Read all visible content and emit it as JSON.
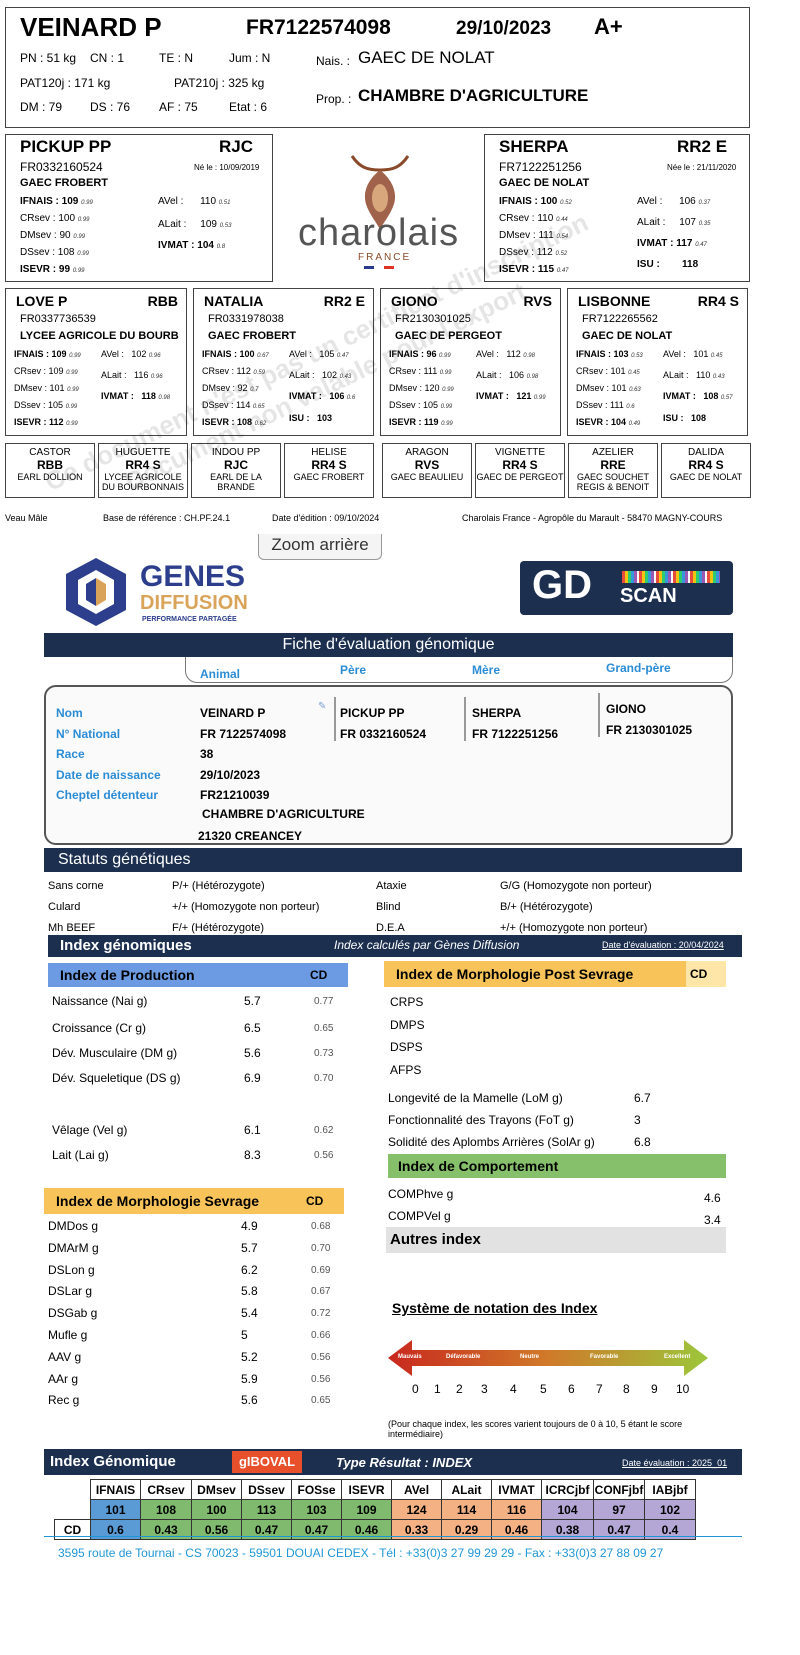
{
  "header": {
    "name": "VEINARD P",
    "national_id": "FR7122574098",
    "birth_date": "29/10/2023",
    "grade": "A+",
    "pn": "PN : 51 kg",
    "cn": "CN : 1",
    "te": "TE : N",
    "jum": "Jum : N",
    "pat120": "PAT120j : 171 kg",
    "pat210": "PAT210j : 325 kg",
    "dm": "DM : 79",
    "ds": "DS : 76",
    "af": "AF : 75",
    "etat": "Etat : 6",
    "nais_label": "Nais. :",
    "nais_value": "GAEC DE NOLAT",
    "prop_label": "Prop. :",
    "prop_value": "CHAMBRE D'AGRICULTURE"
  },
  "sire": {
    "name": "PICKUP PP",
    "code": "RJC",
    "id": "FR0332160524",
    "born": "Né le : 10/09/2019",
    "breeder": "GAEC FROBERT",
    "l1": "IFNAIS :",
    "v1": "109",
    "c1": "0.99",
    "l2": "CRsev :",
    "v2": "100",
    "c2": "0.99",
    "l3": "DMsev :",
    "v3": "90",
    "c3": "0.99",
    "l4": "DSsev :",
    "v4": "108",
    "c4": "0.99",
    "l5": "ISEVR :",
    "v5": "99",
    "c5": "0.99",
    "r1": "AVel :",
    "rv1": "110",
    "rc1": "0.51",
    "r2": "ALait :",
    "rv2": "109",
    "rc2": "0.53",
    "r3": "IVMAT :",
    "rv3": "104",
    "rc3": "0.8"
  },
  "dam": {
    "name": "SHERPA",
    "code": "RR2 E",
    "id": "FR7122251256",
    "born": "Née le : 21/11/2020",
    "breeder": "GAEC DE NOLAT",
    "l1": "IFNAIS :",
    "v1": "100",
    "c1": "0.52",
    "l2": "CRsev :",
    "v2": "110",
    "c2": "0.44",
    "l3": "DMsev :",
    "v3": "111",
    "c3": "0.54",
    "l4": "DSsev :",
    "v4": "112",
    "c4": "0.52",
    "l5": "ISEVR :",
    "v5": "115",
    "c5": "0.47",
    "r1": "AVel :",
    "rv1": "106",
    "rc1": "0.37",
    "r2": "ALait :",
    "rv2": "107",
    "rc2": "0.35",
    "r3": "IVMAT :",
    "rv3": "117",
    "rc3": "0.47",
    "r4": "ISU :",
    "rv4": "118"
  },
  "logo": {
    "word": "charolais",
    "sub": "FRANCE"
  },
  "grandparents": [
    {
      "name": "LOVE P",
      "code": "RBB",
      "id": "FR0337736539",
      "breeder": "LYCEE AGRICOLE DU BOURB",
      "v": [
        "109",
        "109",
        "101",
        "105",
        "112"
      ],
      "c": [
        "0.99",
        "0.99",
        "0.99",
        "0.99",
        "0.99"
      ],
      "rv": [
        "102",
        "116",
        "118"
      ],
      "rc": [
        "0.96",
        "0.96",
        "0.98"
      ],
      "rl": [
        "AVel :",
        "ALait :",
        "IVMAT :"
      ]
    },
    {
      "name": "NATALIA",
      "code": "RR2 E",
      "id": "FR0331978038",
      "breeder": "GAEC FROBERT",
      "v": [
        "100",
        "112",
        "92",
        "114",
        "108"
      ],
      "c": [
        "0.67",
        "0.59",
        "0.7",
        "0.65",
        "0.62"
      ],
      "rv": [
        "105",
        "102",
        "106",
        "103"
      ],
      "rc": [
        "0.47",
        "0.43",
        "0.6",
        ""
      ],
      "rl": [
        "AVel :",
        "ALait :",
        "IVMAT :",
        "ISU :"
      ]
    },
    {
      "name": "GIONO",
      "code": "RVS",
      "id": "FR2130301025",
      "breeder": "GAEC DE PERGEOT",
      "v": [
        "96",
        "111",
        "120",
        "105",
        "119"
      ],
      "c": [
        "0.99",
        "0.99",
        "0.99",
        "0.99",
        "0.99"
      ],
      "rv": [
        "112",
        "106",
        "121"
      ],
      "rc": [
        "0.98",
        "0.98",
        "0.99"
      ],
      "rl": [
        "AVel :",
        "ALait :",
        "IVMAT :"
      ]
    },
    {
      "name": "LISBONNE",
      "code": "RR4 S",
      "id": "FR7122265562",
      "breeder": "GAEC DE NOLAT",
      "v": [
        "103",
        "101",
        "101",
        "111",
        "104"
      ],
      "c": [
        "0.53",
        "0.45",
        "0.63",
        "0.6",
        "0.49"
      ],
      "rv": [
        "101",
        "110",
        "108",
        "108"
      ],
      "rc": [
        "0.45",
        "0.43",
        "0.57",
        ""
      ],
      "rl": [
        "AVel :",
        "ALait :",
        "IVMAT :",
        "ISU :"
      ]
    }
  ],
  "gp_labels": [
    "IFNAIS :",
    "CRsev :",
    "DMsev :",
    "DSsev :",
    "ISEVR :"
  ],
  "great_grandparents": [
    {
      "name": "CASTOR",
      "code": "RBB",
      "breeder": "EARL DOLLION"
    },
    {
      "name": "HUGUETTE",
      "code": "RR4 S",
      "breeder": "LYCEE AGRICOLE DU BOURBONNAIS"
    },
    {
      "name": "INDOU PP",
      "code": "RJC",
      "breeder": "EARL DE LA BRANDE"
    },
    {
      "name": "HELISE",
      "code": "RR4 S",
      "breeder": "GAEC FROBERT"
    },
    {
      "name": "ARAGON",
      "code": "RVS",
      "breeder": "GAEC BEAULIEU"
    },
    {
      "name": "VIGNETTE",
      "code": "RR4 S",
      "breeder": "GAEC DE PERGEOT"
    },
    {
      "name": "AZELIER",
      "code": "RRE",
      "breeder": "GAEC SOUCHET REGIS & BENOIT"
    },
    {
      "name": "DALIDA",
      "code": "RR4 S",
      "breeder": "GAEC DE NOLAT"
    }
  ],
  "footer1": {
    "sex": "Veau Mâle",
    "base": "Base de référence : CH.PF.24.1",
    "edition": "Date d'édition : 09/10/2024",
    "address": "Charolais France - Agropôle du Marault - 58470 MAGNY-COURS"
  },
  "watermark": {
    "line1": "Ce document n'est pas un certificat d'inscription",
    "line2": "Document non valable pour l'export"
  },
  "zoom_button": "Zoom arrière",
  "genes": {
    "line1": "GENES",
    "line2": "DIFFUSION",
    "tag": "PERFORMANCE PARTAGÉE"
  },
  "gdscan": {
    "gd": "GD",
    "scan": "SCAN"
  },
  "fiche": {
    "title": "Fiche d'évaluation génomique",
    "tabs": [
      "Animal",
      "Père",
      "Mère",
      "Grand-père"
    ]
  },
  "animal": {
    "labels": [
      "Nom",
      "N° National",
      "Race",
      "Date de naissance",
      "Cheptel détenteur"
    ],
    "values": [
      "VEINARD P",
      "FR 7122574098",
      "38",
      "29/10/2023",
      "FR21210039"
    ],
    "owner": "CHAMBRE D'AGRICULTURE",
    "city": "21320 CREANCEY",
    "pere_name": "PICKUP PP",
    "pere_id": "FR 0332160524",
    "mere_name": "SHERPA",
    "mere_id": "FR 7122251256",
    "gp_name": "GIONO",
    "gp_id": "FR 2130301025"
  },
  "statuts": {
    "title": "Statuts génétiques",
    "left": [
      [
        "Sans corne",
        "P/+ (Hétérozygote)"
      ],
      [
        "Culard",
        "+/+ (Homozygote non porteur)"
      ],
      [
        "Mh BEEF",
        "F/+ (Hétérozygote)"
      ]
    ],
    "right": [
      [
        "Ataxie",
        "G/G (Homozygote non porteur)"
      ],
      [
        "Blind",
        "B/+ (Hétérozygote)"
      ],
      [
        "D.E.A",
        "+/+ (Homozygote non porteur)"
      ]
    ]
  },
  "index_header": {
    "title": "Index génomiques",
    "calc": "Index calculés par Gènes Diffusion",
    "date": "Date d'évaluation : 20/04/2024"
  },
  "production": {
    "title": "Index de Production",
    "cd": "CD",
    "rows": [
      [
        "Naissance (Nai g)",
        "5.7",
        "0.77"
      ],
      [
        "Croissance (Cr g)",
        "6.5",
        "0.65"
      ],
      [
        "Dév. Musculaire (DM g)",
        "5.6",
        "0.73"
      ],
      [
        "Dév. Squeletique (DS g)",
        "6.9",
        "0.70"
      ]
    ],
    "rows2": [
      [
        "Vêlage (Vel g)",
        "6.1",
        "0.62"
      ],
      [
        "Lait (Lai g)",
        "8.3",
        "0.56"
      ]
    ]
  },
  "morpho_post": {
    "title": "Index de Morphologie Post Sevrage",
    "cd": "CD",
    "items": [
      "CRPS",
      "DMPS",
      "DSPS",
      "AFPS"
    ],
    "rows": [
      [
        "Longevité de la Mamelle (LoM g)",
        "6.7"
      ],
      [
        "Fonctionnalité des Trayons (FoT g)",
        "3"
      ],
      [
        "Solidité des Aplombs Arrières (SolAr g)",
        "6.8"
      ]
    ]
  },
  "comportement": {
    "title": "Index de Comportement",
    "rows": [
      [
        "COMPhve g",
        "4.6"
      ],
      [
        "COMPVel g",
        "3.4"
      ]
    ]
  },
  "autres": "Autres index",
  "morpho_sevrage": {
    "title": "Index de Morphologie Sevrage",
    "cd": "CD",
    "rows": [
      [
        "DMDos g",
        "4.9",
        "0.68"
      ],
      [
        "DMArM g",
        "5.7",
        "0.70"
      ],
      [
        "DSLon g",
        "6.2",
        "0.69"
      ],
      [
        "DSLar g",
        "5.8",
        "0.67"
      ],
      [
        "DSGab g",
        "5.4",
        "0.72"
      ],
      [
        "Mufle g",
        "5",
        "0.66"
      ],
      [
        "AAV g",
        "5.2",
        "0.56"
      ],
      [
        "AAr g",
        "5.9",
        "0.56"
      ],
      [
        "Rec g",
        "5.6",
        "0.65"
      ]
    ]
  },
  "notation": {
    "title": "Système de notation des Index",
    "scale_labels": [
      "Mauvais",
      "Défavorable",
      "Neutre",
      "Favorable",
      "Excellent"
    ],
    "ticks": [
      "0",
      "1",
      "2",
      "3",
      "4",
      "5",
      "6",
      "7",
      "8",
      "9",
      "10"
    ],
    "note": "(Pour chaque index, les scores varient toujours de 0 à 10, 5 étant le score intermédiaire)"
  },
  "gboval": {
    "title": "Index Génomique",
    "badge": "gIBOVAL",
    "type": "Type Résultat : INDEX",
    "date": "Date évaluation : 2025_01",
    "headers": [
      "IFNAIS",
      "CRsev",
      "DMsev",
      "DSsev",
      "FOSse",
      "ISEVR",
      "AVel",
      "ALait",
      "IVMAT",
      "ICRCjbf",
      "CONFjbf",
      "IABjbf"
    ],
    "values": [
      "101",
      "108",
      "100",
      "113",
      "103",
      "109",
      "124",
      "114",
      "116",
      "104",
      "97",
      "102"
    ],
    "cd_label": "CD",
    "cd": [
      "0.6",
      "0.43",
      "0.56",
      "0.47",
      "0.47",
      "0.46",
      "0.33",
      "0.29",
      "0.46",
      "0.38",
      "0.47",
      "0.4"
    ],
    "colors": [
      "#5b9bd5",
      "#7fba6e",
      "#7fba6e",
      "#7fba6e",
      "#7fba6e",
      "#7fba6e",
      "#f4b183",
      "#f4b183",
      "#f4b183",
      "#b4a7d6",
      "#b4a7d6",
      "#b4a7d6"
    ]
  },
  "footer2": "3595 route de Tournai - CS 70023 - 59501 DOUAI CEDEX - Tél : +33(0)3 27 99 29 29 - Fax : +33(0)3 27 88 09 27"
}
